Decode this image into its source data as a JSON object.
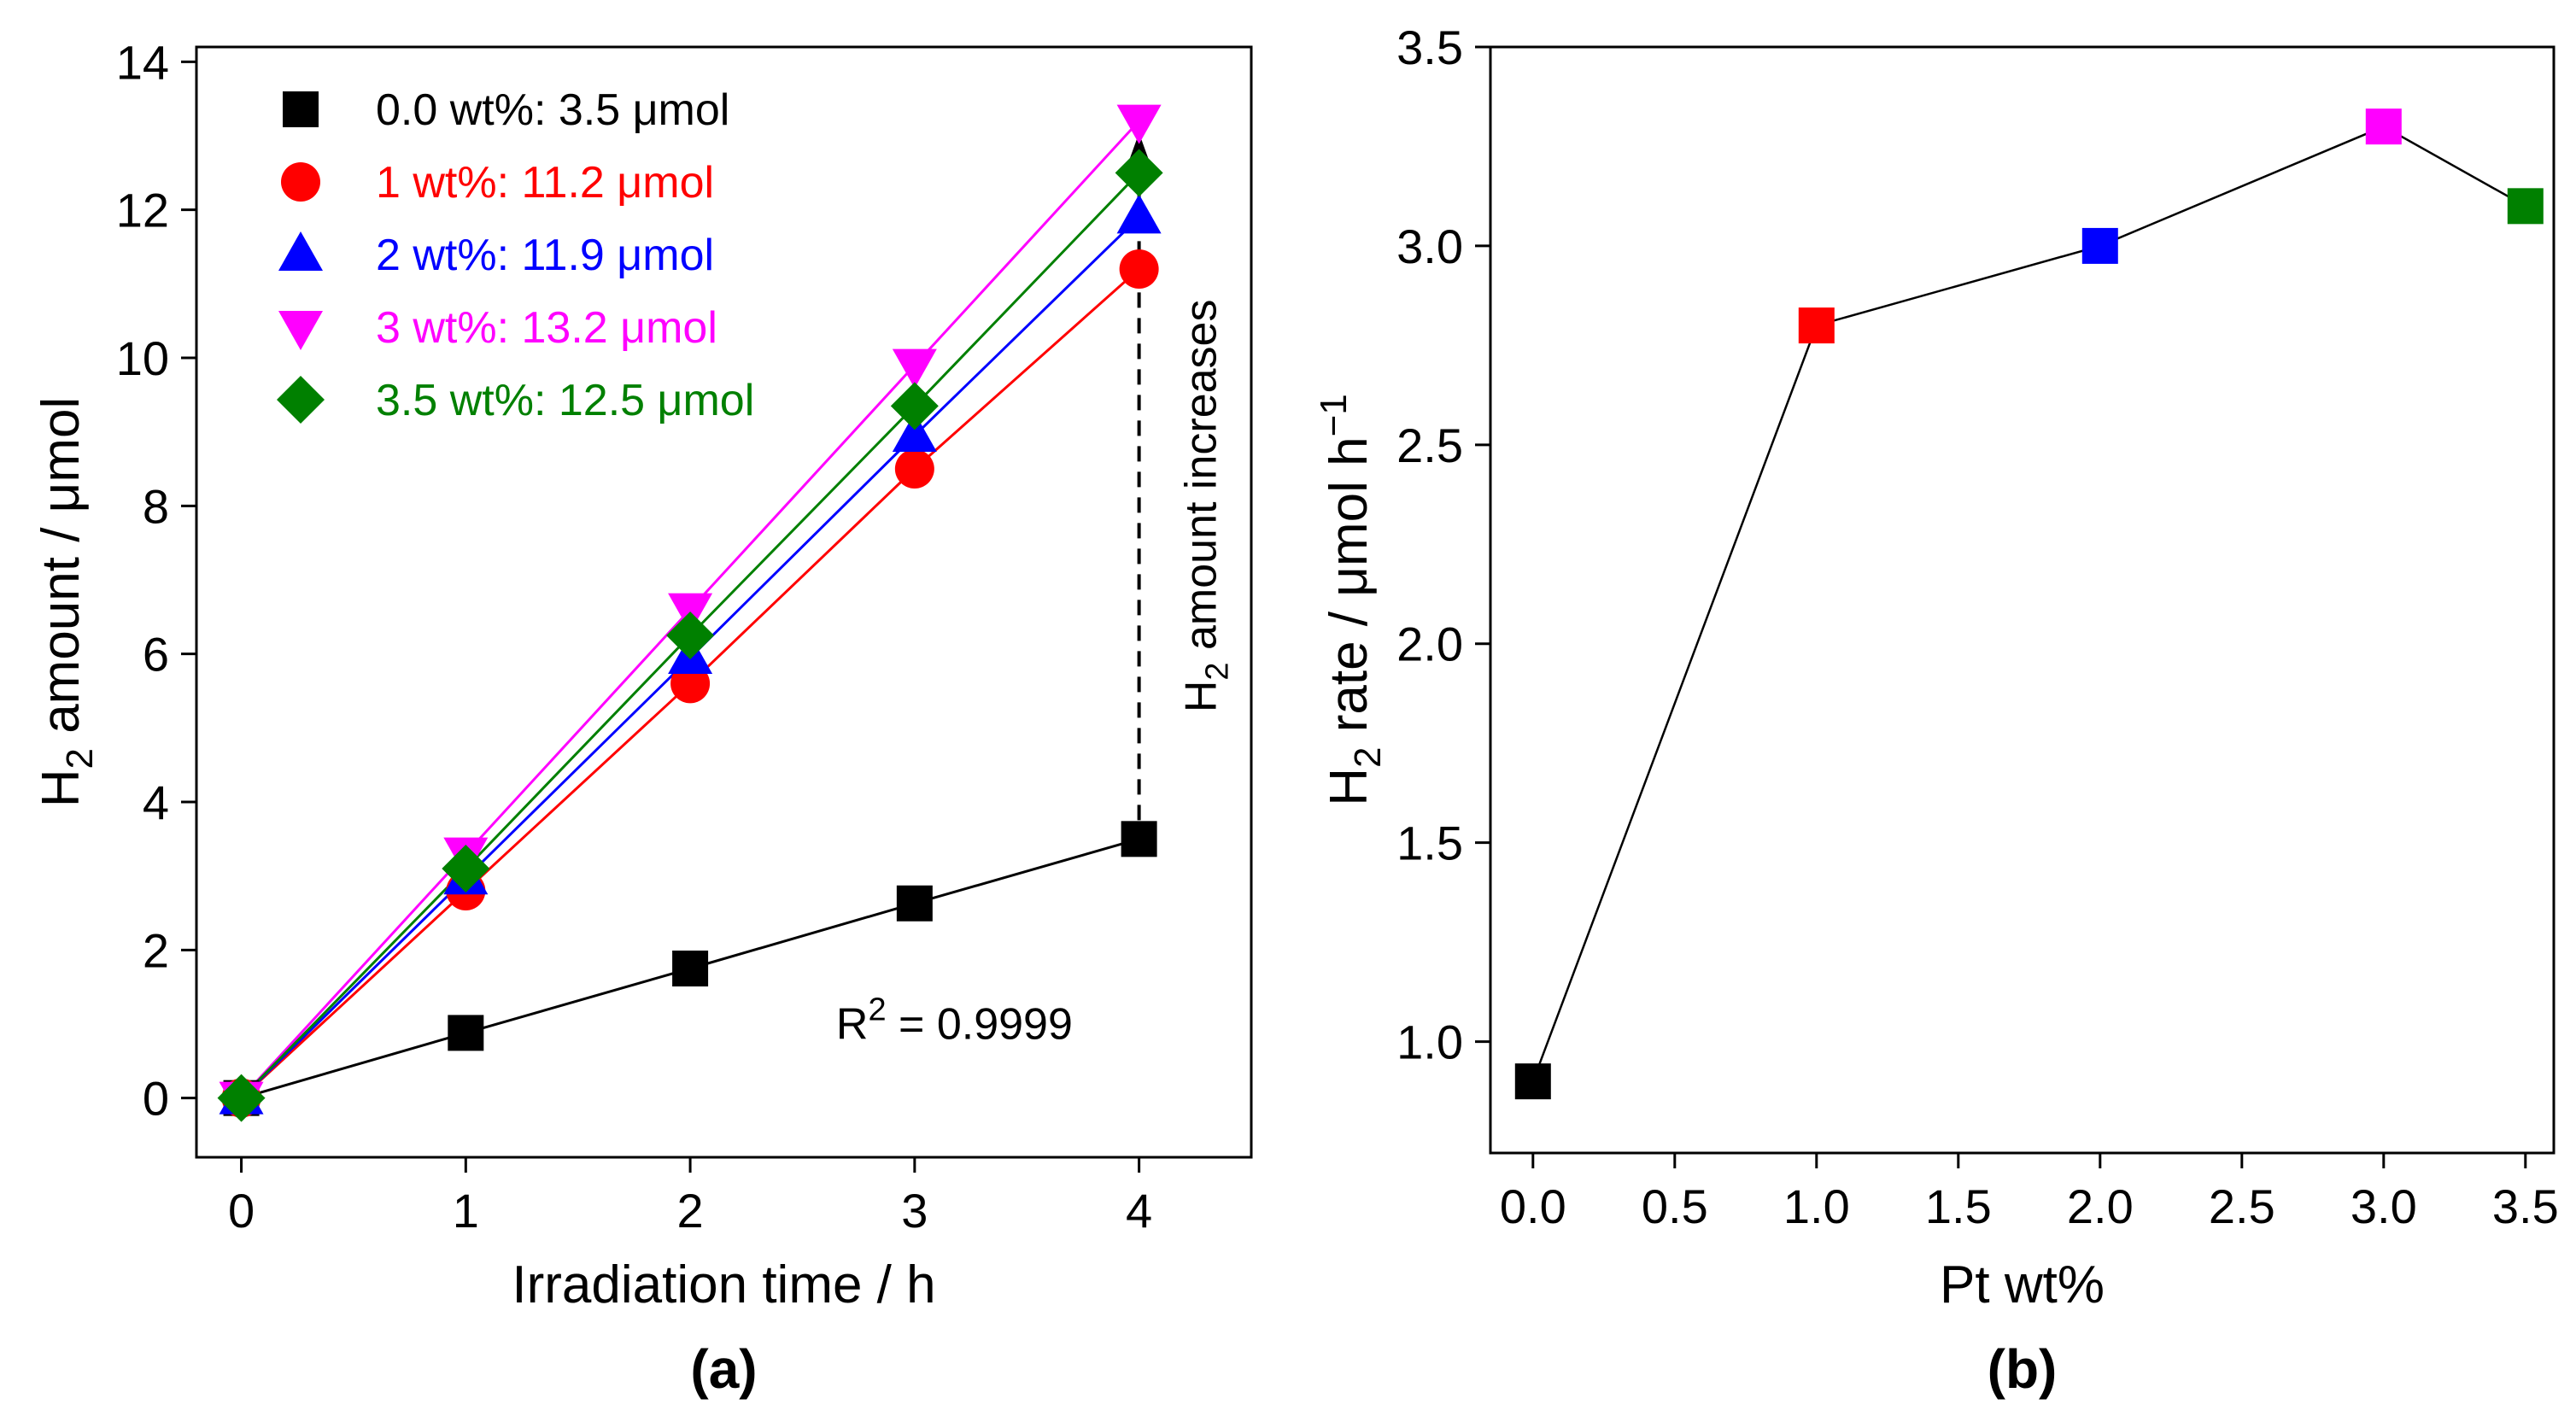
{
  "chart_data": [
    {
      "type": "line",
      "title": "",
      "panel_label": "(a)",
      "xlabel": "Irradiation time / h",
      "ylabel_prefix": "H",
      "ylabel_sub": "2",
      "ylabel_rest": " amount / μmol",
      "xlim": [
        -0.2,
        4.5
      ],
      "ylim": [
        -0.8,
        14.2
      ],
      "xticks": [
        0,
        1,
        2,
        3,
        4
      ],
      "xtick_labels": [
        "0",
        "1",
        "2",
        "3",
        "4"
      ],
      "yticks": [
        0,
        2,
        4,
        6,
        8,
        10,
        12,
        14
      ],
      "ytick_labels": [
        "0",
        "2",
        "4",
        "6",
        "8",
        "10",
        "12",
        "14"
      ],
      "x": [
        0,
        1,
        2,
        3,
        4
      ],
      "series": [
        {
          "name": "0.0 wt%: 3.5 μmol",
          "label": "0.0 wt%: 3.5 μmol",
          "color": "#000000",
          "marker": "square",
          "values": [
            0,
            0.88,
            1.75,
            2.63,
            3.5
          ]
        },
        {
          "name": "1 wt%: 11.2 μmol",
          "label": "1 wt%: 11.2 μmol",
          "color": "#ff0000",
          "marker": "circle",
          "values": [
            0,
            2.8,
            5.6,
            8.5,
            11.2
          ]
        },
        {
          "name": "2 wt%: 11.9 μmol",
          "label": "2 wt%: 11.9 μmol",
          "color": "#0000ff",
          "marker": "triangle-up",
          "values": [
            0,
            2.97,
            5.95,
            8.95,
            11.9
          ]
        },
        {
          "name": "3 wt%: 13.2 μmol",
          "label": "3 wt%: 13.2 μmol",
          "color": "#ff00ff",
          "marker": "triangle-down",
          "values": [
            0,
            3.3,
            6.6,
            9.9,
            13.2
          ]
        },
        {
          "name": "3.5 wt%: 12.5 μmol",
          "label": "3.5 wt%: 12.5 μmol",
          "color": "#008000",
          "marker": "diamond",
          "values": [
            0,
            3.1,
            6.25,
            9.35,
            12.5
          ]
        }
      ],
      "legend_position": "top-left",
      "annotations": {
        "r2_prefix": "R",
        "r2_sup": "2",
        "r2_rest": " = 0.9999",
        "arrow_prefix": "H",
        "arrow_sub": "2",
        "arrow_rest": " amount increases",
        "arrow_x": 4,
        "arrow_from": 3.5,
        "arrow_to": 13.2,
        "arrow_color": "#00008b"
      }
    },
    {
      "type": "line",
      "title": "",
      "panel_label": "(b)",
      "xlabel": "Pt wt%",
      "ylabel_prefix": "H",
      "ylabel_sub": "2",
      "ylabel_rest": " rate / μmol h",
      "ylabel_sup": "−1",
      "xlim": [
        -0.15,
        3.6
      ],
      "ylim": [
        0.72,
        3.5
      ],
      "xticks": [
        0,
        0.5,
        1,
        1.5,
        2,
        2.5,
        3,
        3.5
      ],
      "xtick_labels": [
        "0.0",
        "0.5",
        "1.0",
        "1.5",
        "2.0",
        "2.5",
        "3.0",
        "3.5"
      ],
      "yticks": [
        1.0,
        1.5,
        2.0,
        2.5,
        3.0,
        3.5
      ],
      "ytick_labels": [
        "1.0",
        "1.5",
        "2.0",
        "2.5",
        "3.0",
        "3.5"
      ],
      "x": [
        0,
        1,
        2,
        3,
        3.5
      ],
      "series": [
        {
          "name": "H2 rate",
          "values": [
            0.9,
            2.8,
            3.0,
            3.3,
            3.1
          ],
          "colors": [
            "#000000",
            "#ff0000",
            "#0000ff",
            "#ff00ff",
            "#008000"
          ],
          "marker": "square"
        }
      ]
    }
  ]
}
